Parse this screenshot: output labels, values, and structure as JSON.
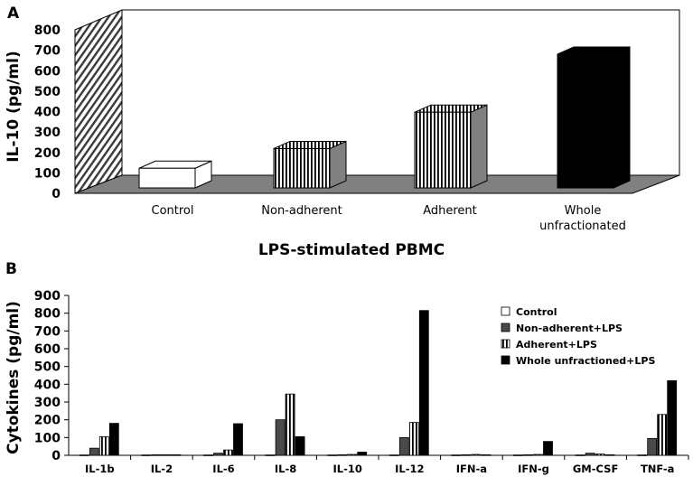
{
  "chart_data": [
    {
      "panel": "A",
      "type": "bar",
      "style": "3d",
      "categories": [
        "Control",
        "Non-adherent",
        "Adherent",
        "Whole\nunfractionated"
      ],
      "values": [
        100,
        200,
        385,
        680
      ],
      "ylabel": "IL-10 (pg/ml)",
      "xlabel": "LPS-stimulated PBMC",
      "ylim": [
        0,
        800
      ],
      "yticks": [
        0,
        100,
        200,
        300,
        400,
        500,
        600,
        700,
        800
      ],
      "bar_fills": [
        "white",
        "vertical-lines",
        "vertical-lines",
        "black"
      ],
      "grid": false,
      "legend": "none"
    },
    {
      "panel": "B",
      "type": "bar",
      "categories": [
        "IL-1b",
        "IL-2",
        "IL-6",
        "IL-8",
        "IL-10",
        "IL-12",
        "IFN-a",
        "IFN-g",
        "GM-CSF",
        "TNF-a"
      ],
      "series": [
        {
          "name": "Control",
          "fill": "white",
          "values": [
            2,
            2,
            2,
            2,
            2,
            2,
            2,
            2,
            2,
            2
          ]
        },
        {
          "name": "Non-adherent+LPS",
          "fill": "dark-gray",
          "values": [
            40,
            3,
            12,
            200,
            3,
            100,
            3,
            3,
            12,
            95
          ]
        },
        {
          "name": "Adherent+LPS",
          "fill": "vertical-lines",
          "values": [
            105,
            3,
            30,
            345,
            5,
            185,
            5,
            5,
            7,
            230
          ]
        },
        {
          "name": "Whole unfractioned+LPS",
          "fill": "black",
          "values": [
            180,
            3,
            178,
            105,
            18,
            815,
            3,
            78,
            3,
            420
          ]
        }
      ],
      "ylabel": "Cytokines (pg/ml)",
      "xlabel": "",
      "ylim": [
        0,
        900
      ],
      "yticks": [
        0,
        100,
        200,
        300,
        400,
        500,
        600,
        700,
        800,
        900
      ],
      "grid": false,
      "legend": "top-right"
    }
  ],
  "panel_labels": [
    "A",
    "B"
  ]
}
